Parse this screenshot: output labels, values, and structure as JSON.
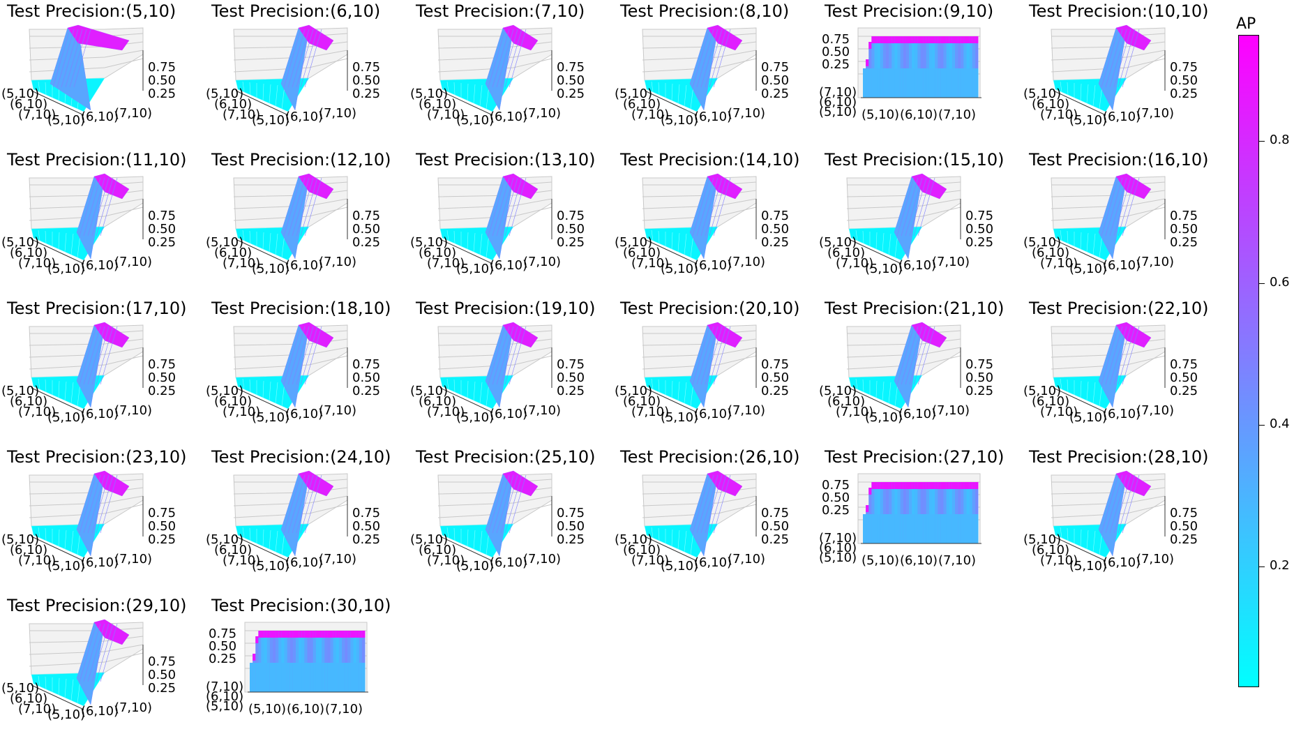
{
  "colors": {
    "low": "#00ffff",
    "high": "#ff00ff",
    "pane": "#f2f2f2",
    "grid": "#c8c8c8"
  },
  "chart_data": [
    {
      "type": "surface3d",
      "title": "Test Precision:(5,10)",
      "style": "wide",
      "zticks": [
        "0.75",
        "0.50",
        "0.25"
      ],
      "xticks": [
        "(5,10)",
        "(6,10)",
        "(7,10)"
      ],
      "yticks": [
        "(5,10)",
        "(6,10)",
        "(7,10)"
      ]
    },
    {
      "type": "surface3d",
      "title": "Test Precision:(6,10)",
      "style": "normal",
      "zticks": [
        "0.75",
        "0.50",
        "0.25"
      ],
      "xticks": [
        "(5,10)",
        "(6,10)",
        "(7,10)"
      ],
      "yticks": [
        "(5,10)",
        "(6,10)",
        "(7,10)"
      ]
    },
    {
      "type": "surface3d",
      "title": "Test Precision:(7,10)",
      "style": "normal",
      "zticks": [
        "0.75",
        "0.50",
        "0.25"
      ],
      "xticks": [
        "(5,10)",
        "(6,10)",
        "(7,10)"
      ],
      "yticks": [
        "(5,10)",
        "(6,10)",
        "(7,10)"
      ]
    },
    {
      "type": "surface3d",
      "title": "Test Precision:(8,10)",
      "style": "normal",
      "zticks": [
        "0.75",
        "0.50",
        "0.25"
      ],
      "xticks": [
        "(5,10)",
        "(6,10)",
        "(7,10)"
      ],
      "yticks": [
        "(5,10)",
        "(6,10)",
        "(7,10)"
      ]
    },
    {
      "type": "surface3d",
      "title": "Test Precision:(9,10)",
      "style": "flat",
      "zticks": [
        "0.75",
        "0.50",
        "0.25"
      ],
      "xticks": [
        "(5,10)",
        "(6,10)",
        "(7,10)"
      ],
      "yticks": [
        "(7,10)",
        "(6,10)",
        "(5,10)"
      ]
    },
    {
      "type": "surface3d",
      "title": "Test Precision:(10,10)",
      "style": "normal",
      "zticks": [
        "0.75",
        "0.50",
        "0.25"
      ],
      "xticks": [
        "(5,10)",
        "(6,10)",
        "(7,10)"
      ],
      "yticks": [
        "(5,10)",
        "(6,10)",
        "(7,10)"
      ]
    },
    {
      "type": "surface3d",
      "title": "Test Precision:(11,10)",
      "style": "normal",
      "zticks": [
        "0.75",
        "0.50",
        "0.25"
      ],
      "xticks": [
        "(5,10)",
        "(6,10)",
        "(7,10)"
      ],
      "yticks": [
        "(5,10)",
        "(6,10)",
        "(7,10)"
      ]
    },
    {
      "type": "surface3d",
      "title": "Test Precision:(12,10)",
      "style": "normal",
      "zticks": [
        "0.75",
        "0.50",
        "0.25"
      ],
      "xticks": [
        "(5,10)",
        "(6,10)",
        "(7,10)"
      ],
      "yticks": [
        "(5,10)",
        "(6,10)",
        "(7,10)"
      ]
    },
    {
      "type": "surface3d",
      "title": "Test Precision:(13,10)",
      "style": "normal",
      "zticks": [
        "0.75",
        "0.50",
        "0.25"
      ],
      "xticks": [
        "(5,10)",
        "(6,10)",
        "(7,10)"
      ],
      "yticks": [
        "(5,10)",
        "(6,10)",
        "(7,10)"
      ]
    },
    {
      "type": "surface3d",
      "title": "Test Precision:(14,10)",
      "style": "normal",
      "zticks": [
        "0.75",
        "0.50",
        "0.25"
      ],
      "xticks": [
        "(5,10)",
        "(6,10)",
        "(7,10)"
      ],
      "yticks": [
        "(5,10)",
        "(6,10)",
        "(7,10)"
      ]
    },
    {
      "type": "surface3d",
      "title": "Test Precision:(15,10)",
      "style": "normal",
      "zticks": [
        "0.75",
        "0.50",
        "0.25"
      ],
      "xticks": [
        "(5,10)",
        "(6,10)",
        "(7,10)"
      ],
      "yticks": [
        "(5,10)",
        "(6,10)",
        "(7,10)"
      ]
    },
    {
      "type": "surface3d",
      "title": "Test Precision:(16,10)",
      "style": "normal",
      "zticks": [
        "0.75",
        "0.50",
        "0.25"
      ],
      "xticks": [
        "(5,10)",
        "(6,10)",
        "(7,10)"
      ],
      "yticks": [
        "(5,10)",
        "(6,10)",
        "(7,10)"
      ]
    },
    {
      "type": "surface3d",
      "title": "Test Precision:(17,10)",
      "style": "normal",
      "zticks": [
        "0.75",
        "0.50",
        "0.25"
      ],
      "xticks": [
        "(5,10)",
        "(6,10)",
        "(7,10)"
      ],
      "yticks": [
        "(5,10)",
        "(6,10)",
        "(7,10)"
      ]
    },
    {
      "type": "surface3d",
      "title": "Test Precision:(18,10)",
      "style": "normal",
      "zticks": [
        "0.75",
        "0.50",
        "0.25"
      ],
      "xticks": [
        "(5,10)",
        "(6,10)",
        "(7,10)"
      ],
      "yticks": [
        "(5,10)",
        "(6,10)",
        "(7,10)"
      ]
    },
    {
      "type": "surface3d",
      "title": "Test Precision:(19,10)",
      "style": "normal",
      "zticks": [
        "0.75",
        "0.50",
        "0.25"
      ],
      "xticks": [
        "(5,10)",
        "(6,10)",
        "(7,10)"
      ],
      "yticks": [
        "(5,10)",
        "(6,10)",
        "(7,10)"
      ]
    },
    {
      "type": "surface3d",
      "title": "Test Precision:(20,10)",
      "style": "normal",
      "zticks": [
        "0.75",
        "0.50",
        "0.25"
      ],
      "xticks": [
        "(5,10)",
        "(6,10)",
        "(7,10)"
      ],
      "yticks": [
        "(5,10)",
        "(6,10)",
        "(7,10)"
      ]
    },
    {
      "type": "surface3d",
      "title": "Test Precision:(21,10)",
      "style": "normal",
      "zticks": [
        "0.75",
        "0.50",
        "0.25"
      ],
      "xticks": [
        "(5,10)",
        "(6,10)",
        "(7,10)"
      ],
      "yticks": [
        "(5,10)",
        "(6,10)",
        "(7,10)"
      ]
    },
    {
      "type": "surface3d",
      "title": "Test Precision:(22,10)",
      "style": "normal",
      "zticks": [
        "0.75",
        "0.50",
        "0.25"
      ],
      "xticks": [
        "(5,10)",
        "(6,10)",
        "(7,10)"
      ],
      "yticks": [
        "(5,10)",
        "(6,10)",
        "(7,10)"
      ]
    },
    {
      "type": "surface3d",
      "title": "Test Precision:(23,10)",
      "style": "normal",
      "zticks": [
        "0.75",
        "0.50",
        "0.25"
      ],
      "xticks": [
        "(5,10)",
        "(6,10)",
        "(7,10)"
      ],
      "yticks": [
        "(5,10)",
        "(6,10)",
        "(7,10)"
      ]
    },
    {
      "type": "surface3d",
      "title": "Test Precision:(24,10)",
      "style": "normal",
      "zticks": [
        "0.75",
        "0.50",
        "0.25"
      ],
      "xticks": [
        "(5,10)",
        "(6,10)",
        "(7,10)"
      ],
      "yticks": [
        "(5,10)",
        "(6,10)",
        "(7,10)"
      ]
    },
    {
      "type": "surface3d",
      "title": "Test Precision:(25,10)",
      "style": "normal",
      "zticks": [
        "0.75",
        "0.50",
        "0.25"
      ],
      "xticks": [
        "(5,10)",
        "(6,10)",
        "(7,10)"
      ],
      "yticks": [
        "(5,10)",
        "(6,10)",
        "(7,10)"
      ]
    },
    {
      "type": "surface3d",
      "title": "Test Precision:(26,10)",
      "style": "normal",
      "zticks": [
        "0.75",
        "0.50",
        "0.25"
      ],
      "xticks": [
        "(5,10)",
        "(6,10)",
        "(7,10)"
      ],
      "yticks": [
        "(5,10)",
        "(6,10)",
        "(7,10)"
      ]
    },
    {
      "type": "surface3d",
      "title": "Test Precision:(27,10)",
      "style": "flat",
      "zticks": [
        "0.75",
        "0.50",
        "0.25"
      ],
      "xticks": [
        "(5,10)",
        "(6,10)",
        "(7,10)"
      ],
      "yticks": [
        "(7,10)",
        "(6,10)",
        "(5,10)"
      ]
    },
    {
      "type": "surface3d",
      "title": "Test Precision:(28,10)",
      "style": "normal",
      "zticks": [
        "0.75",
        "0.50",
        "0.25"
      ],
      "xticks": [
        "(5,10)",
        "(6,10)",
        "(7,10)"
      ],
      "yticks": [
        "(5,10)",
        "(6,10)",
        "(7,10)"
      ]
    },
    {
      "type": "surface3d",
      "title": "Test Precision:(29,10)",
      "style": "normal",
      "zticks": [
        "0.75",
        "0.50",
        "0.25"
      ],
      "xticks": [
        "(5,10)",
        "(6,10)",
        "(7,10)"
      ],
      "yticks": [
        "(5,10)",
        "(6,10)",
        "(7,10)"
      ]
    },
    {
      "type": "surface3d",
      "title": "Test Precision:(30,10)",
      "style": "flat",
      "zticks": [
        "0.75",
        "0.50",
        "0.25"
      ],
      "xticks": [
        "(5,10)",
        "(6,10)",
        "(7,10)"
      ],
      "yticks": [
        "(7,10)",
        "(6,10)",
        "(5,10)"
      ]
    }
  ],
  "colorbar": {
    "label": "AP",
    "range": [
      0.03,
      0.95
    ],
    "ticks": [
      0.2,
      0.4,
      0.6,
      0.8
    ],
    "tick_labels": [
      "0.2",
      "0.4",
      "0.6",
      "0.8"
    ]
  }
}
